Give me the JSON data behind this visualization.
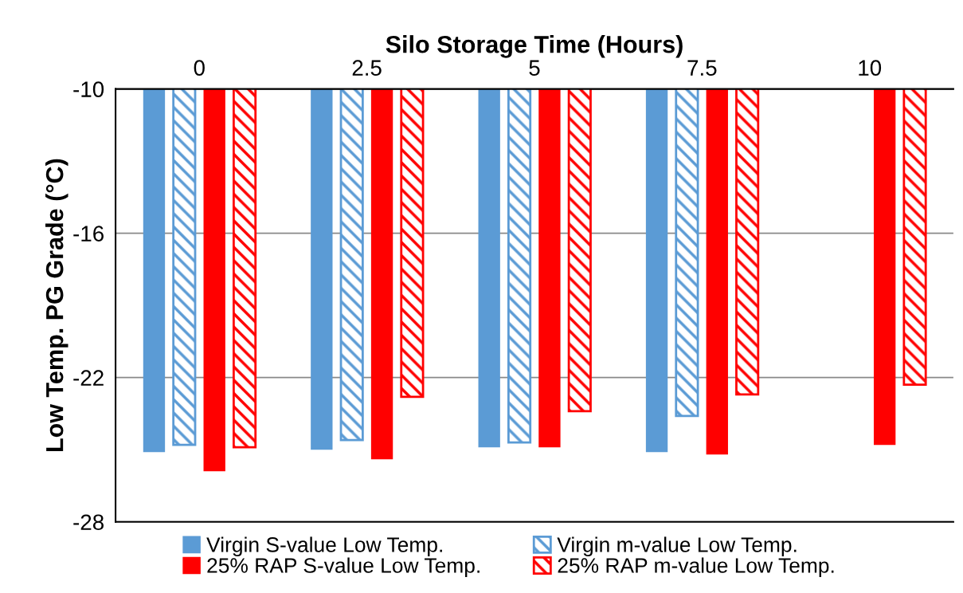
{
  "chart_data": {
    "type": "bar",
    "xlabel": "Silo Storage Time (Hours)",
    "ylabel": "Low Temp. PG Grade (°C)",
    "categories": [
      "0",
      "2.5",
      "5",
      "7.5",
      "10"
    ],
    "series": [
      {
        "name": "Virgin S-value Low Temp.",
        "color": "#5b9bd5",
        "values": [
          -25.1,
          -25.0,
          -24.9,
          -25.1,
          null
        ]
      },
      {
        "name": "Virgin m-value Low Temp.",
        "color": "#5b9bd5",
        "values": [
          -24.8,
          -24.6,
          -24.7,
          -23.6,
          null
        ]
      },
      {
        "name": "25% RAP S-value Low Temp.",
        "color": "#ff0000",
        "values": [
          -25.9,
          -25.4,
          -24.9,
          -25.2,
          -24.8
        ]
      },
      {
        "name": "25% RAP m-value Low Temp.",
        "color": "#ff0000",
        "values": [
          -24.9,
          -22.8,
          -23.4,
          -22.7,
          -22.3
        ]
      }
    ],
    "ylim": [
      -28,
      -10
    ],
    "yticks": [
      -10,
      -16,
      -22,
      -28
    ],
    "grid": "y",
    "legend": "bottom"
  }
}
